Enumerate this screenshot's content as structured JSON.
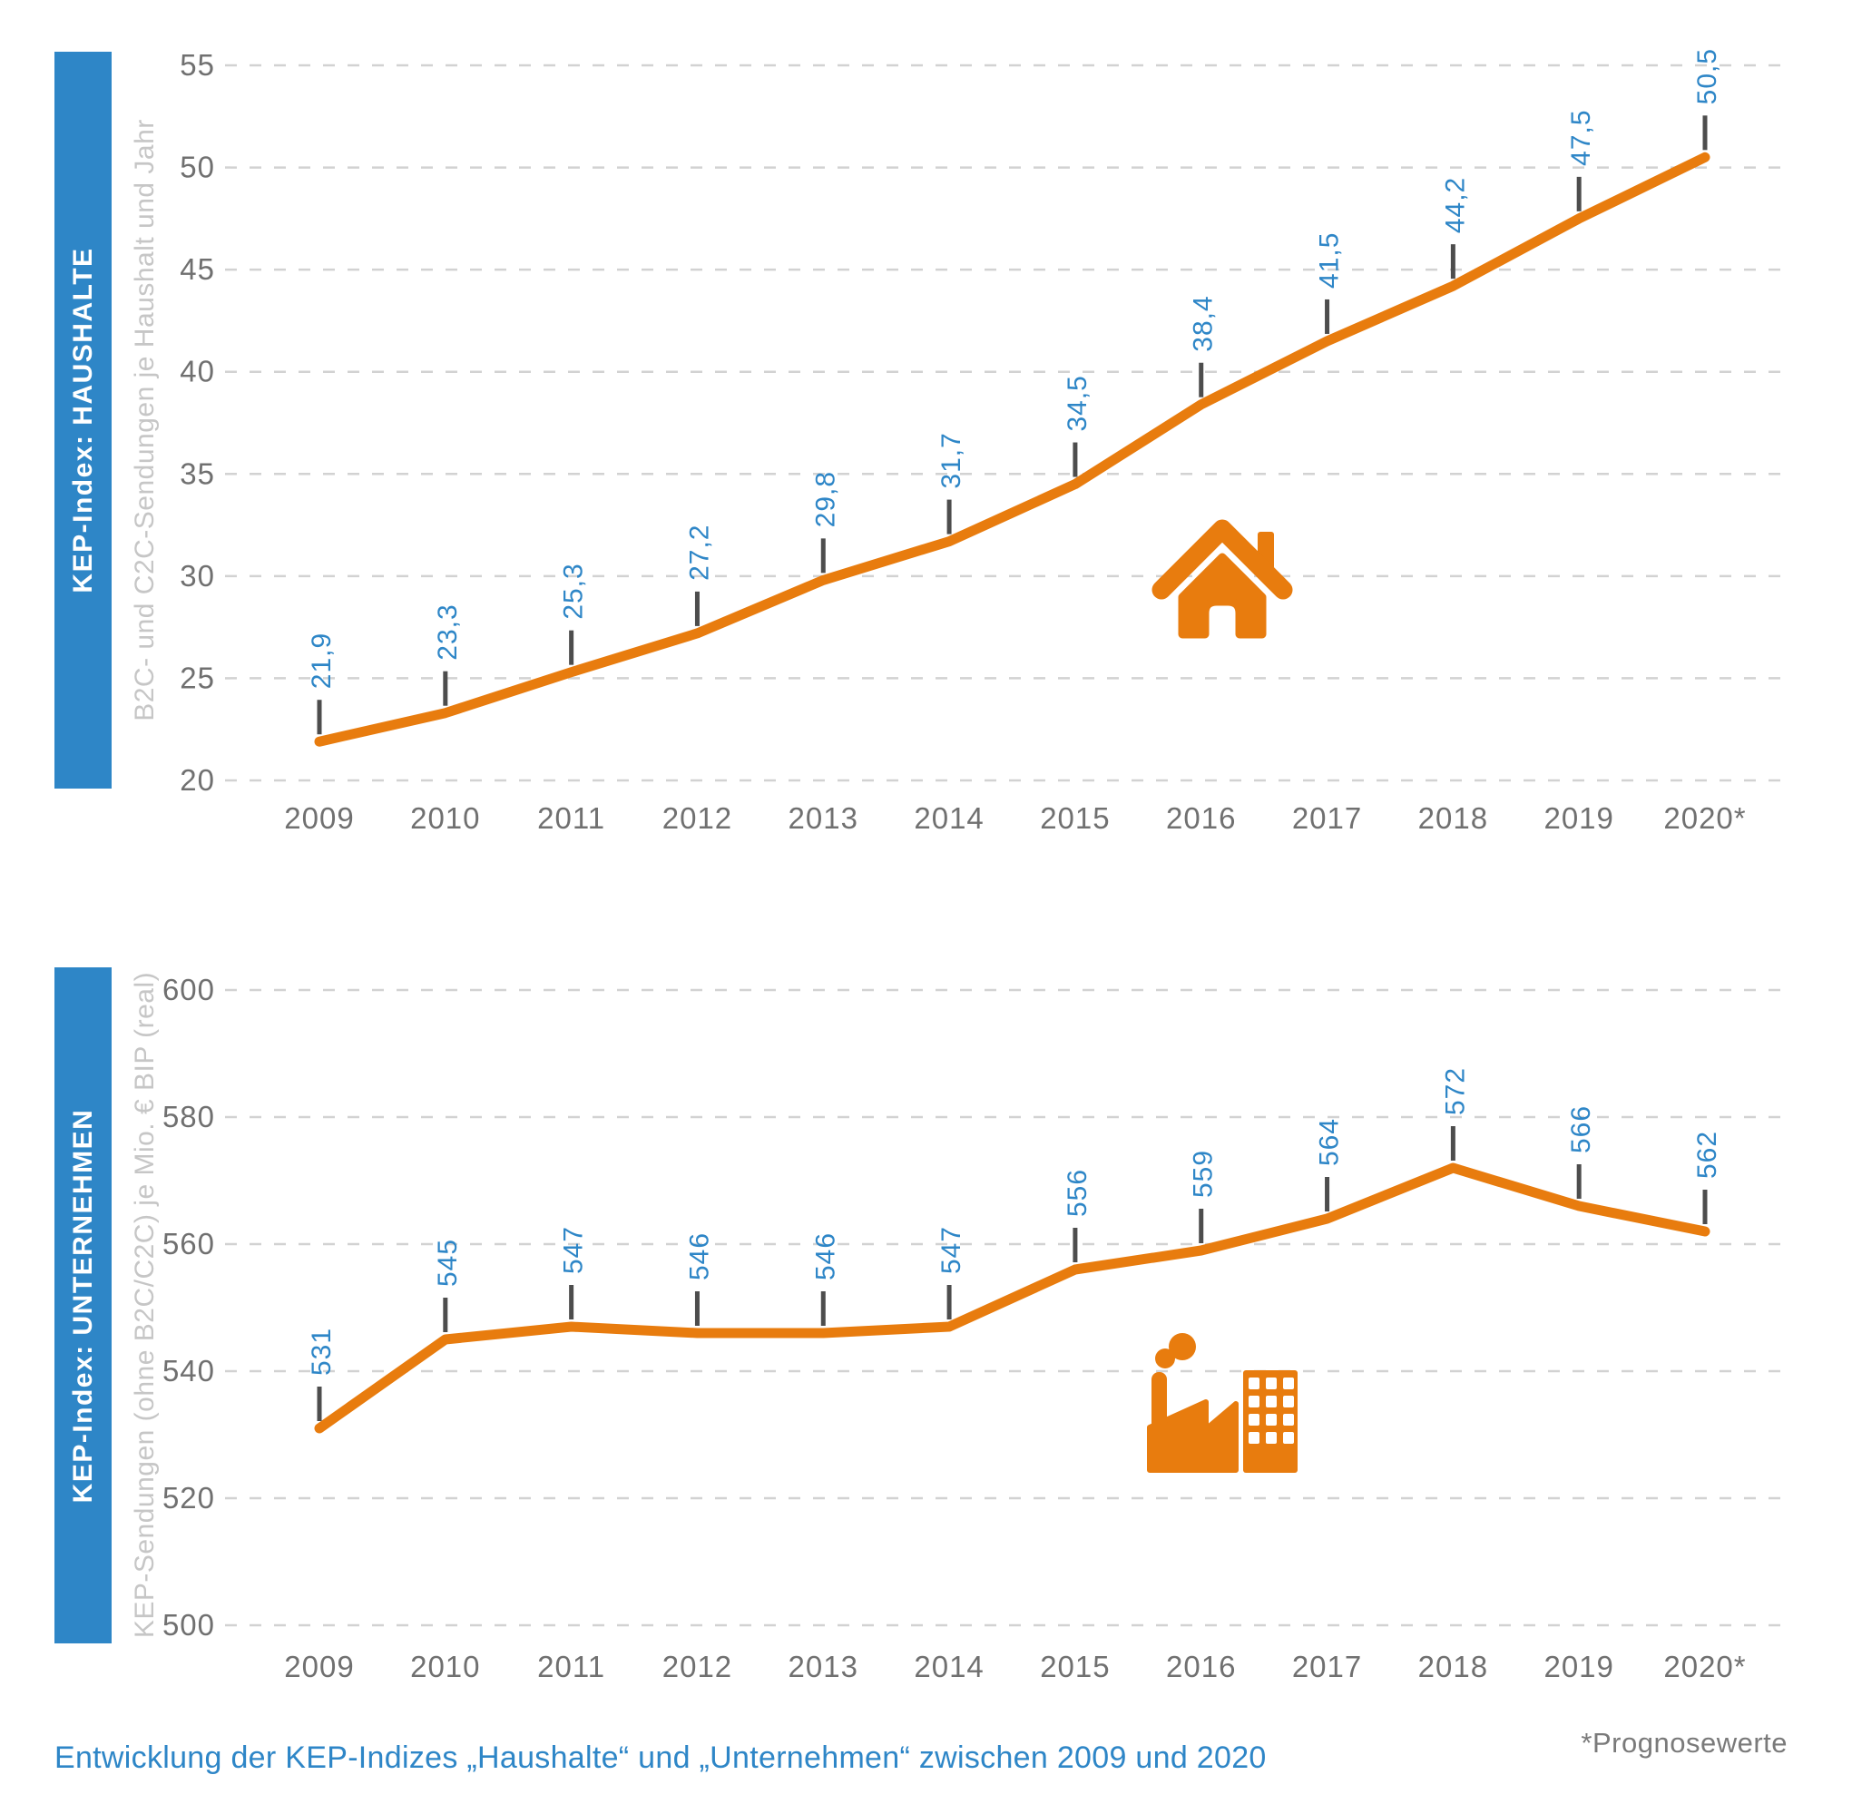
{
  "page": {
    "caption": "Entwicklung der KEP-Indizes „Haushalte“ und „Unternehmen“ zwischen 2009 und 2020",
    "footnote": "*Prognosewerte"
  },
  "colors": {
    "accent_orange": "#e87c0e",
    "accent_blue": "#2e86c7",
    "band_blue": "#2e86c7",
    "grid_gray": "#d2d2d2",
    "tick_gray": "#4d4d4d",
    "axis_text_gray": "#707070",
    "side_label_gray": "#c6c6c6",
    "footnote_gray": "#7a7a7a"
  },
  "chart_data": [
    {
      "type": "line",
      "band_label": "KEP-Index: HAUSHALTE",
      "ylabel": "B2C- und C2C-Sendungen je Haushalt und Jahr",
      "icon": "house-icon",
      "legend": "none",
      "grid": true,
      "categories": [
        "2009",
        "2010",
        "2011",
        "2012",
        "2013",
        "2014",
        "2015",
        "2016",
        "2017",
        "2018",
        "2019",
        "2020*"
      ],
      "values": [
        21.9,
        23.3,
        25.3,
        27.2,
        29.8,
        31.7,
        34.5,
        38.4,
        41.5,
        44.2,
        47.5,
        50.5
      ],
      "value_labels": [
        "21,9",
        "23,3",
        "25,3",
        "27,2",
        "29,8",
        "31,7",
        "34,5",
        "38,4",
        "41,5",
        "44,2",
        "47,5",
        "50,5"
      ],
      "ylim": [
        20,
        55
      ],
      "ytick_step": 5
    },
    {
      "type": "line",
      "band_label": "KEP-Index: UNTERNEHMEN",
      "ylabel": "KEP-Sendungen (ohne B2C/C2C) je Mio. € BIP (real)",
      "icon": "factory-icon",
      "legend": "none",
      "grid": true,
      "categories": [
        "2009",
        "2010",
        "2011",
        "2012",
        "2013",
        "2014",
        "2015",
        "2016",
        "2017",
        "2018",
        "2019",
        "2020*"
      ],
      "values": [
        531,
        545,
        547,
        546,
        546,
        547,
        556,
        559,
        564,
        572,
        566,
        562
      ],
      "value_labels": [
        "531",
        "545",
        "547",
        "546",
        "546",
        "547",
        "556",
        "559",
        "564",
        "572",
        "566",
        "562"
      ],
      "ylim": [
        500,
        600
      ],
      "ytick_step": 20
    }
  ]
}
